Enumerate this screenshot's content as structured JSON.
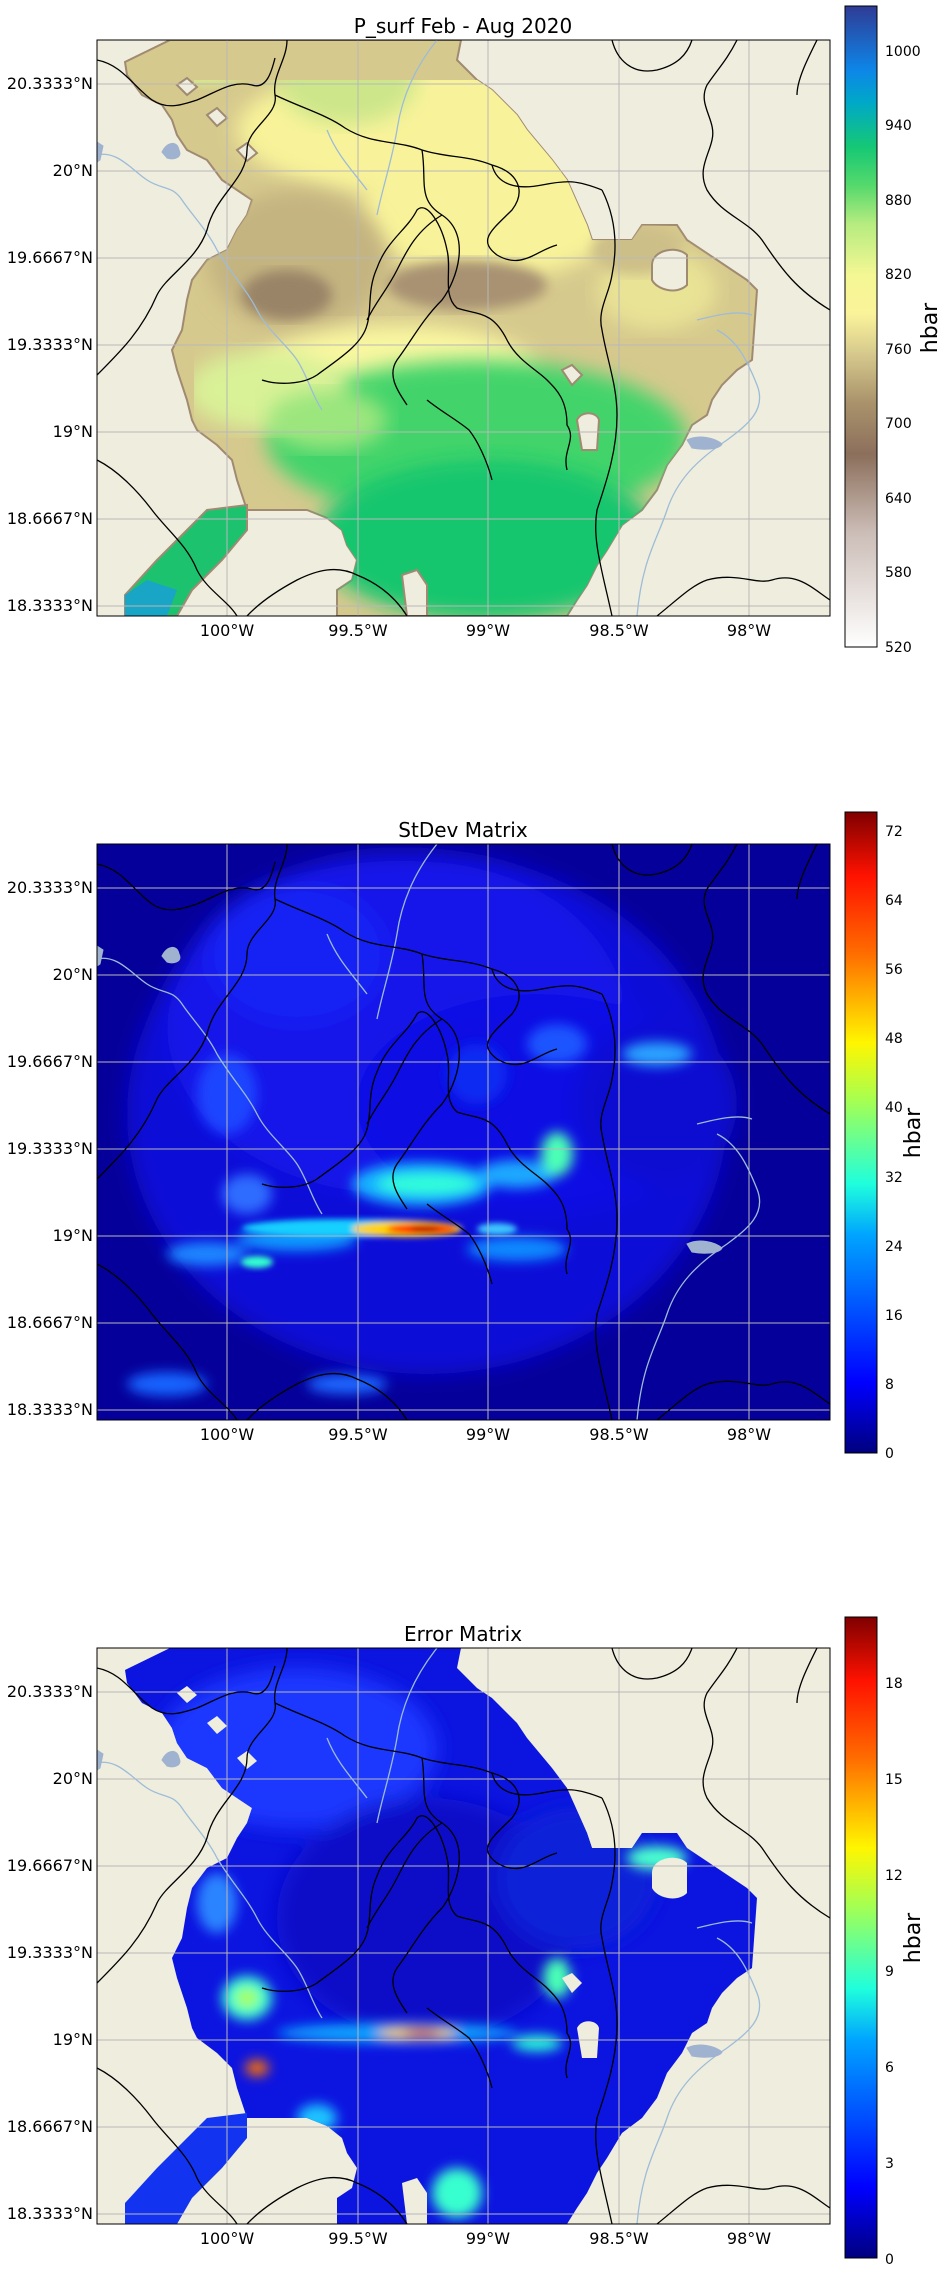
{
  "colors": {
    "land": "#efedde",
    "river": "#9dbcd8",
    "lake": "#9fb2cf",
    "border": "#000000",
    "grid": "#b8b8b8"
  },
  "panels": [
    {
      "title": "P_surf Feb - Aug 2020",
      "unit": "hbar",
      "x_ticks": [
        "100°W",
        "99.5°W",
        "99°W",
        "98.5°W",
        "98°W"
      ],
      "y_ticks": [
        "20.3333°N",
        "20°N",
        "19.6667°N",
        "19.3333°N",
        "19°N",
        "18.6667°N",
        "18.3333°N"
      ],
      "colorbar": {
        "min": 520,
        "max": 1030,
        "ticks": [
          "520",
          "580",
          "640",
          "700",
          "760",
          "820",
          "880",
          "940",
          "1000"
        ],
        "colormap": "terrain"
      }
    },
    {
      "title": "StDev Matrix",
      "unit": "hbar",
      "x_ticks": [
        "100°W",
        "99.5°W",
        "99°W",
        "98.5°W",
        "98°W"
      ],
      "y_ticks": [
        "20.3333°N",
        "20°N",
        "19.6667°N",
        "19.3333°N",
        "19°N",
        "18.6667°N",
        "18.3333°N"
      ],
      "colorbar": {
        "min": 0,
        "max": 74,
        "ticks": [
          "0",
          "8",
          "16",
          "24",
          "32",
          "40",
          "48",
          "56",
          "64",
          "72"
        ],
        "colormap": "jet"
      }
    },
    {
      "title": "Error Matrix",
      "unit": "hbar",
      "x_ticks": [
        "100°W",
        "99.5°W",
        "99°W",
        "98.5°W",
        "98°W"
      ],
      "y_ticks": [
        "20.3333°N",
        "20°N",
        "19.6667°N",
        "19.3333°N",
        "19°N",
        "18.6667°N",
        "18.3333°N"
      ],
      "colorbar": {
        "min": 0,
        "max": 20,
        "ticks": [
          "0",
          "3",
          "6",
          "9",
          "12",
          "15",
          "18"
        ],
        "colormap": "jet"
      }
    }
  ]
}
